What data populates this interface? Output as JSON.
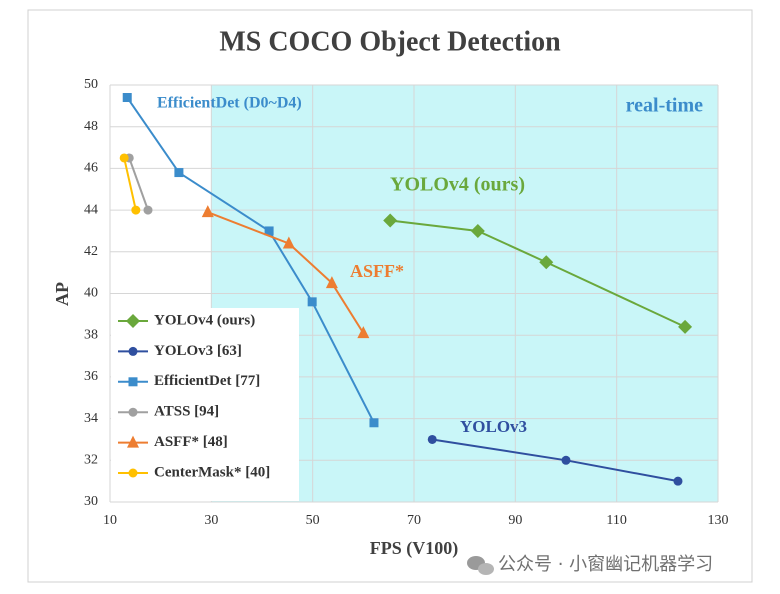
{
  "chart_data": {
    "type": "line",
    "title": "MS COCO Object Detection",
    "x_label": "FPS (V100)",
    "y_label": "AP",
    "xlim": [
      10,
      130
    ],
    "xticks": [
      10,
      30,
      50,
      70,
      90,
      110,
      130
    ],
    "ylim": [
      30,
      50
    ],
    "yticks": [
      30,
      32,
      34,
      36,
      38,
      40,
      42,
      44,
      46,
      48,
      50
    ],
    "grid": true,
    "legend": "lower left",
    "shaded_region": {
      "xlim": [
        30,
        130
      ],
      "color": "#c9f6f8",
      "label": "real-time"
    },
    "series": [
      {
        "name": "YOLOv4 (ours)",
        "color": "#6aa83c",
        "marker": "diamond",
        "x": [
          65.3,
          82.6,
          96.1,
          123.5
        ],
        "values": [
          43.5,
          43.0,
          41.5,
          38.4
        ]
      },
      {
        "name": "YOLOv3 [63]",
        "color": "#2f4f9f",
        "marker": "circle",
        "x": [
          73.6,
          100,
          122.1
        ],
        "values": [
          33.0,
          32.0,
          31.0
        ]
      },
      {
        "name": "EfficientDet [77]",
        "color": "#3b8ccb",
        "marker": "square",
        "x": [
          13.4,
          23.6,
          41.4,
          49.9,
          62.1
        ],
        "values": [
          49.4,
          45.8,
          43.0,
          39.6,
          33.8
        ]
      },
      {
        "name": "ATSS [94]",
        "color": "#a0a0a0",
        "marker": "circle",
        "x": [
          13.8,
          17.5
        ],
        "values": [
          46.5,
          44.0
        ]
      },
      {
        "name": "ASFF* [48]",
        "color": "#ed7d31",
        "marker": "triangle",
        "x": [
          29.3,
          45.3,
          53.8,
          60.0
        ],
        "values": [
          43.9,
          42.4,
          40.5,
          38.1
        ]
      },
      {
        "name": "CenterMask* [40]",
        "color": "#ffc000",
        "marker": "circle",
        "x": [
          12.8,
          15.1
        ],
        "values": [
          46.5,
          44.0
        ]
      }
    ],
    "annotations": [
      {
        "text": "EfficientDet (D0~D4)",
        "color": "#3b8ccb"
      },
      {
        "text": "YOLOv4 (ours)",
        "color": "#6aa83c"
      },
      {
        "text": "ASFF*",
        "color": "#ed7d31"
      },
      {
        "text": "YOLOv3",
        "color": "#2f4f9f"
      }
    ],
    "watermark": "公众号 · 小窗幽记机器学习"
  }
}
